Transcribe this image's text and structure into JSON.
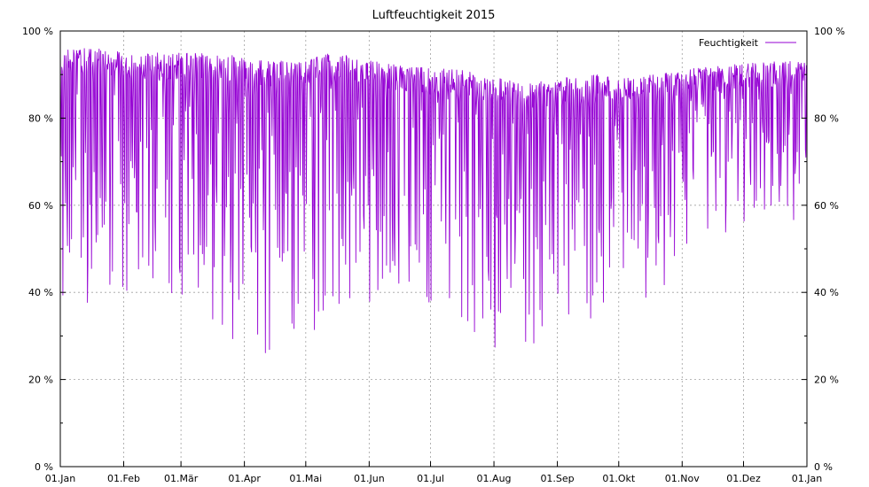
{
  "chart_data": {
    "type": "line",
    "title": "Luftfeuchtigkeit 2015",
    "xlabel": "",
    "ylabel": "",
    "x_unit": "day-of-year",
    "xlim": [
      0,
      365
    ],
    "ylim": [
      0,
      100
    ],
    "y_ticks": [
      0,
      20,
      40,
      60,
      80,
      100
    ],
    "y_tick_labels": [
      "0 %",
      "20 %",
      "40 %",
      "60 %",
      "80 %",
      "100 %"
    ],
    "x_ticks": [
      0,
      31,
      59,
      90,
      120,
      151,
      181,
      212,
      243,
      273,
      304,
      334,
      365
    ],
    "x_tick_labels": [
      "01.Jan",
      "01.Feb",
      "01.Mär",
      "01.Apr",
      "01.Mai",
      "01.Jun",
      "01.Jul",
      "01.Aug",
      "01.Sep",
      "01.Okt",
      "01.Nov",
      "01.Dez",
      "01.Jan"
    ],
    "grid": true,
    "legend_position": "top-right",
    "series": [
      {
        "name": "Feuchtigkeit",
        "color": "#9400d3",
        "monthly_upper_envelope": [
          96,
          95,
          95,
          93,
          95,
          92,
          91,
          88,
          90,
          90,
          92,
          93
        ],
        "monthly_lower_envelope": [
          36,
          42,
          30,
          25,
          32,
          40,
          28,
          26,
          32,
          38,
          49,
          56
        ]
      }
    ]
  }
}
